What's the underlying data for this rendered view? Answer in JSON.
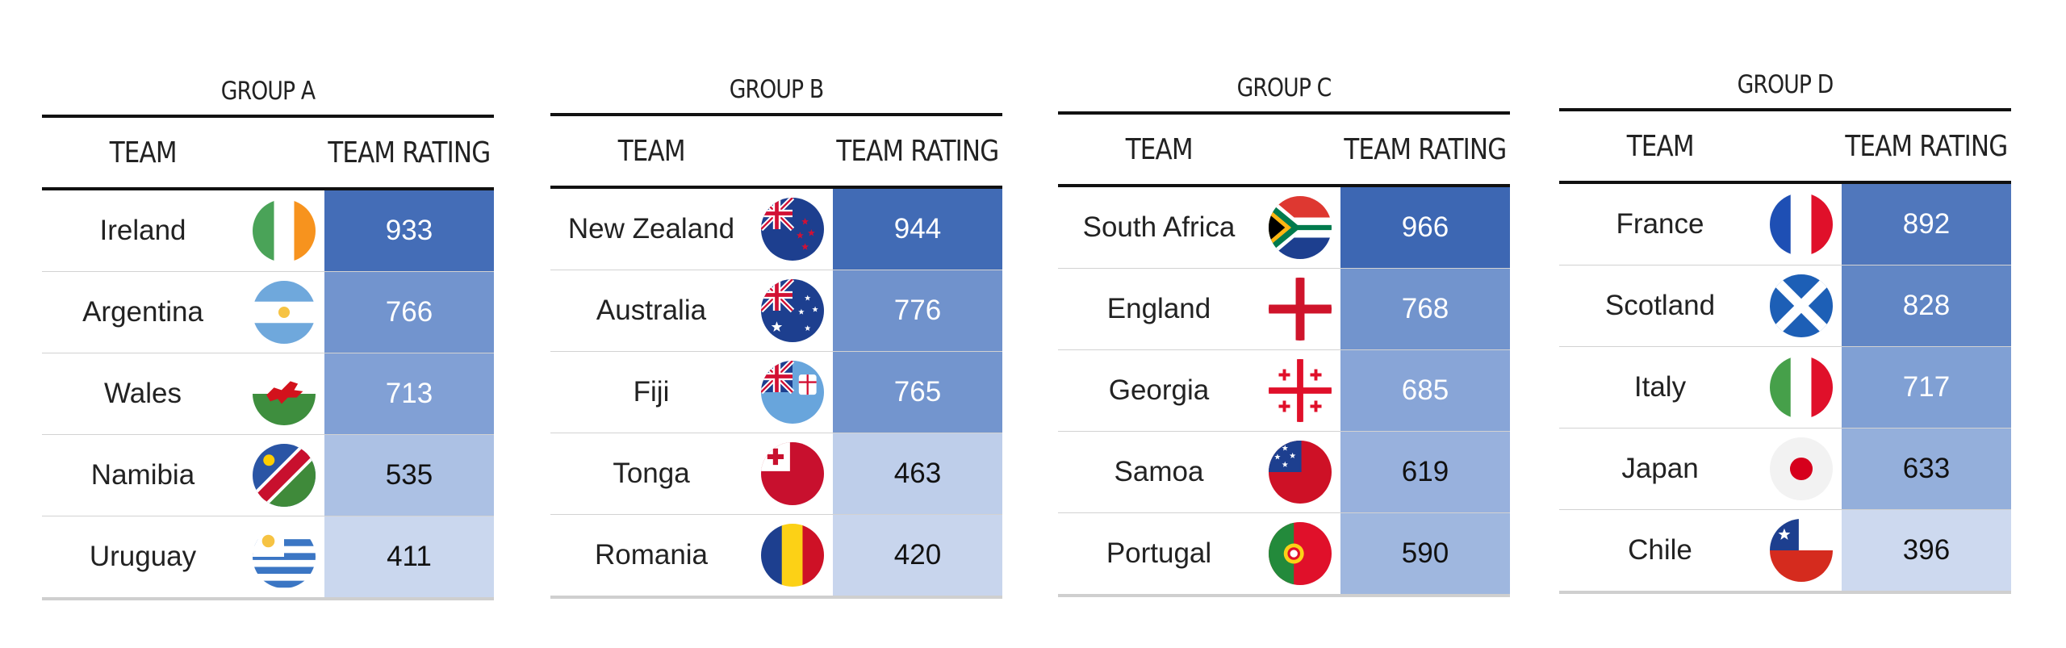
{
  "chart_data": {
    "type": "table",
    "columns": [
      "TEAM",
      "TEAM RATING"
    ],
    "groups": [
      {
        "title": "GROUP A",
        "rows": [
          {
            "team": "Ireland",
            "rating": 933,
            "flag": "ireland-flag-icon"
          },
          {
            "team": "Argentina",
            "rating": 766,
            "flag": "argentina-flag-icon"
          },
          {
            "team": "Wales",
            "rating": 713,
            "flag": "wales-flag-icon"
          },
          {
            "team": "Namibia",
            "rating": 535,
            "flag": "namibia-flag-icon"
          },
          {
            "team": "Uruguay",
            "rating": 411,
            "flag": "uruguay-flag-icon"
          }
        ]
      },
      {
        "title": "GROUP B",
        "rows": [
          {
            "team": "New Zealand",
            "rating": 944,
            "flag": "new-zealand-flag-icon"
          },
          {
            "team": "Australia",
            "rating": 776,
            "flag": "australia-flag-icon"
          },
          {
            "team": "Fiji",
            "rating": 765,
            "flag": "fiji-flag-icon"
          },
          {
            "team": "Tonga",
            "rating": 463,
            "flag": "tonga-flag-icon"
          },
          {
            "team": "Romania",
            "rating": 420,
            "flag": "romania-flag-icon"
          }
        ]
      },
      {
        "title": "GROUP C",
        "rows": [
          {
            "team": "South Africa",
            "rating": 966,
            "flag": "south-africa-flag-icon"
          },
          {
            "team": "England",
            "rating": 768,
            "flag": "england-flag-icon"
          },
          {
            "team": "Georgia",
            "rating": 685,
            "flag": "georgia-flag-icon"
          },
          {
            "team": "Samoa",
            "rating": 619,
            "flag": "samoa-flag-icon"
          },
          {
            "team": "Portugal",
            "rating": 590,
            "flag": "portugal-flag-icon"
          }
        ]
      },
      {
        "title": "GROUP D",
        "rows": [
          {
            "team": "France",
            "rating": 892,
            "flag": "france-flag-icon"
          },
          {
            "team": "Scotland",
            "rating": 828,
            "flag": "scotland-flag-icon"
          },
          {
            "team": "Italy",
            "rating": 717,
            "flag": "italy-flag-icon"
          },
          {
            "team": "Japan",
            "rating": 633,
            "flag": "japan-flag-icon"
          },
          {
            "team": "Chile",
            "rating": 396,
            "flag": "chile-flag-icon"
          }
        ]
      }
    ],
    "color_scale": {
      "low": "#cdd9ef",
      "mid": "#7f9fd4",
      "high": "#3d67b3",
      "text_dark": "#111111",
      "text_light": "#ffffff"
    }
  }
}
